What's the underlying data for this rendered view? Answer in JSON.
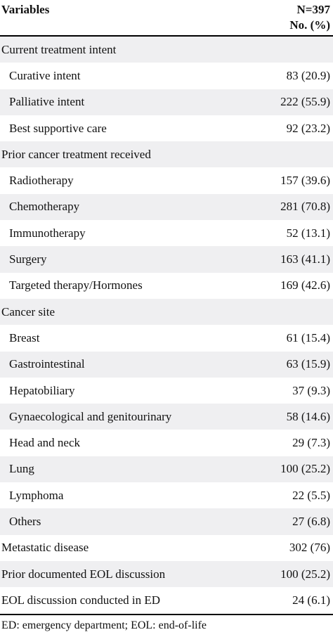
{
  "header": {
    "variables_label": "Variables",
    "n_label": "N=397",
    "no_pct_label": "No. (%)"
  },
  "rows": [
    {
      "label": "Current treatment intent",
      "value": "",
      "type": "group"
    },
    {
      "label": "Curative intent",
      "value": "83 (20.9)",
      "type": "sub"
    },
    {
      "label": "Palliative intent",
      "value": "222 (55.9)",
      "type": "sub"
    },
    {
      "label": "Best supportive care",
      "value": "92 (23.2)",
      "type": "sub"
    },
    {
      "label": "Prior cancer treatment received",
      "value": "",
      "type": "group"
    },
    {
      "label": "Radiotherapy",
      "value": "157 (39.6)",
      "type": "sub"
    },
    {
      "label": "Chemotherapy",
      "value": "281 (70.8)",
      "type": "sub"
    },
    {
      "label": "Immunotherapy",
      "value": "52 (13.1)",
      "type": "sub"
    },
    {
      "label": "Surgery",
      "value": "163 (41.1)",
      "type": "sub"
    },
    {
      "label": "Targeted therapy/Hormones",
      "value": "169 (42.6)",
      "type": "sub"
    },
    {
      "label": "Cancer site",
      "value": "",
      "type": "group"
    },
    {
      "label": "Breast",
      "value": "61 (15.4)",
      "type": "sub"
    },
    {
      "label": "Gastrointestinal",
      "value": "63 (15.9)",
      "type": "sub"
    },
    {
      "label": "Hepatobiliary",
      "value": "37 (9.3)",
      "type": "sub"
    },
    {
      "label": "Gynaecological and genitourinary",
      "value": "58 (14.6)",
      "type": "sub"
    },
    {
      "label": "Head and neck",
      "value": "29 (7.3)",
      "type": "sub"
    },
    {
      "label": "Lung",
      "value": "100 (25.2)",
      "type": "sub"
    },
    {
      "label": "Lymphoma",
      "value": "22 (5.5)",
      "type": "sub"
    },
    {
      "label": "Others",
      "value": "27 (6.8)",
      "type": "sub"
    },
    {
      "label": "Metastatic disease",
      "value": "302 (76)",
      "type": "group"
    },
    {
      "label": "Prior documented EOL discussion",
      "value": "100 (25.2)",
      "type": "group"
    },
    {
      "label": "EOL discussion conducted in ED",
      "value": "24 (6.1)",
      "type": "group"
    }
  ],
  "footnote": "ED: emergency department; EOL: end-of-life",
  "colors": {
    "shade": "#efeff1",
    "rule": "#000000"
  }
}
